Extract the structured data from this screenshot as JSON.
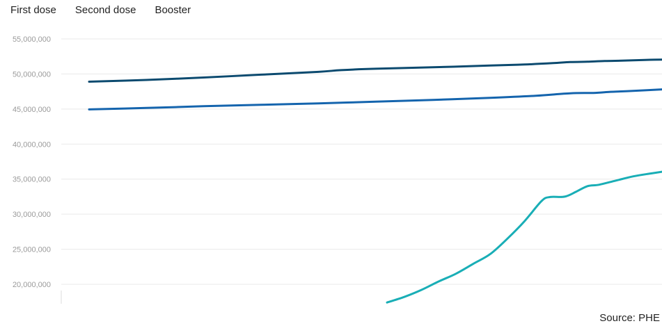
{
  "chart_data": {
    "type": "line",
    "title": "",
    "xlabel": "",
    "ylabel": "",
    "ylim": [
      17000000,
      55000000
    ],
    "yticks": [
      {
        "value": 55000000,
        "label": "55,000,000"
      },
      {
        "value": 50000000,
        "label": "50,000,000"
      },
      {
        "value": 45000000,
        "label": "45,000,000"
      },
      {
        "value": 40000000,
        "label": "40,000,000"
      },
      {
        "value": 35000000,
        "label": "35,000,000"
      },
      {
        "value": 30000000,
        "label": "30,000,000"
      },
      {
        "value": 25000000,
        "label": "25,000,000"
      },
      {
        "value": 20000000,
        "label": "20,000,000"
      }
    ],
    "grid": true,
    "legend_placement": "top-left",
    "source": "Source: PHE",
    "series": [
      {
        "name": "First dose",
        "color": "#0b4a6f",
        "points": [
          [
            0,
            48900000
          ],
          [
            0.1,
            49150000
          ],
          [
            0.2,
            49500000
          ],
          [
            0.3,
            49900000
          ],
          [
            0.4,
            50300000
          ],
          [
            0.44,
            50550000
          ],
          [
            0.5,
            50750000
          ],
          [
            0.6,
            50950000
          ],
          [
            0.7,
            51200000
          ],
          [
            0.76,
            51350000
          ],
          [
            0.81,
            51550000
          ],
          [
            0.84,
            51700000
          ],
          [
            0.87,
            51750000
          ],
          [
            0.9,
            51850000
          ],
          [
            0.93,
            51900000
          ],
          [
            0.97,
            52000000
          ],
          [
            1.0,
            52050000
          ]
        ]
      },
      {
        "name": "Second dose",
        "color": "#1464ad",
        "points": [
          [
            0,
            44950000
          ],
          [
            0.1,
            45150000
          ],
          [
            0.2,
            45400000
          ],
          [
            0.3,
            45600000
          ],
          [
            0.4,
            45800000
          ],
          [
            0.5,
            46050000
          ],
          [
            0.6,
            46300000
          ],
          [
            0.7,
            46600000
          ],
          [
            0.78,
            46900000
          ],
          [
            0.84,
            47250000
          ],
          [
            0.88,
            47300000
          ],
          [
            0.91,
            47450000
          ],
          [
            0.94,
            47550000
          ],
          [
            1.0,
            47800000
          ]
        ]
      },
      {
        "name": "Booster",
        "color": "#19aeb6",
        "points": [
          [
            0.52,
            17400000
          ],
          [
            0.55,
            18200000
          ],
          [
            0.58,
            19200000
          ],
          [
            0.61,
            20400000
          ],
          [
            0.64,
            21500000
          ],
          [
            0.67,
            22900000
          ],
          [
            0.7,
            24300000
          ],
          [
            0.73,
            26500000
          ],
          [
            0.76,
            29000000
          ],
          [
            0.79,
            31900000
          ],
          [
            0.805,
            32450000
          ],
          [
            0.83,
            32500000
          ],
          [
            0.85,
            33200000
          ],
          [
            0.87,
            34000000
          ],
          [
            0.89,
            34200000
          ],
          [
            0.92,
            34800000
          ],
          [
            0.95,
            35400000
          ],
          [
            0.98,
            35800000
          ],
          [
            1.0,
            36050000
          ]
        ]
      }
    ]
  }
}
